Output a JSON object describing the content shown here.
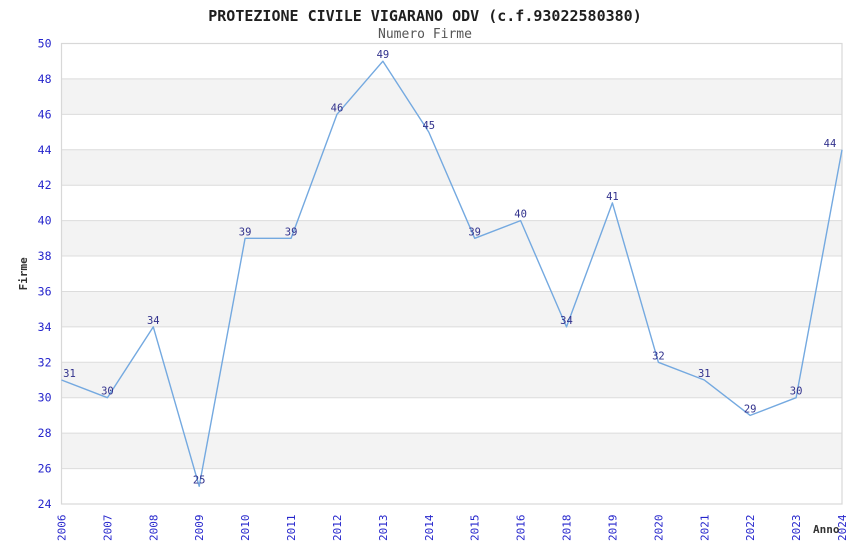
{
  "chart_data": {
    "type": "line",
    "title": "PROTEZIONE CIVILE VIGARANO ODV (c.f.93022580380)",
    "subtitle": "Numero Firme",
    "xlabel": "Anno",
    "ylabel": "Firme",
    "categories": [
      "2006",
      "2007",
      "2008",
      "2009",
      "2010",
      "2011",
      "2012",
      "2013",
      "2014",
      "2015",
      "2016",
      "2018",
      "2019",
      "2020",
      "2021",
      "2022",
      "2023",
      "2024"
    ],
    "values": [
      31,
      30,
      34,
      25,
      39,
      39,
      46,
      49,
      45,
      39,
      40,
      34,
      41,
      32,
      31,
      29,
      30,
      44
    ],
    "ylim": [
      24,
      50
    ],
    "ytick_step": 2,
    "grid": "horizontal-alternating-bands",
    "legend": "none",
    "colors": {
      "line": "#74a9e0",
      "tick_label": "#2525cc",
      "data_label": "#31318c",
      "grid_line": "#dcdcdc",
      "band_fill": "#f3f3f3",
      "plot_border": "#d8d8d8",
      "title": "#1f1f1f",
      "subtitle": "#555555",
      "axis_label": "#333333",
      "background": "#ffffff"
    }
  }
}
